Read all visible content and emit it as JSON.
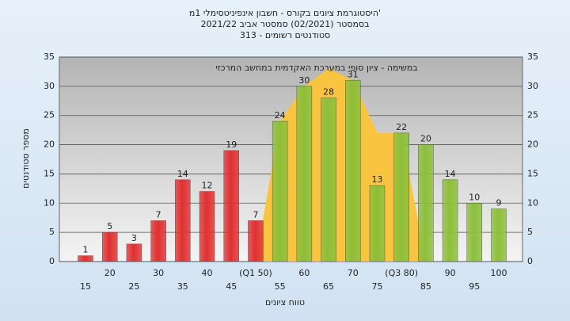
{
  "chart_data": {
    "type": "bar",
    "title": "היסטוגרמת ציונים בקורס - חשבון אינפיניטסימלי 1מ'",
    "subtitle": "בסמסטר (02/2021) סמסטר אביב 2021/22",
    "subtitle2": "סטודנטים רשומים - 313",
    "annotation": "במשימה - ציון סופי במערכת האקדמית במחשב המרכזי",
    "y_label": "מספר סטודנטים",
    "x_label": "טווח ציונים",
    "categories": [
      "15",
      "20",
      "25",
      "30",
      "35",
      "40",
      "45",
      "(Q1 50)",
      "55",
      "60",
      "65",
      "70",
      "75",
      "(Q3 80)",
      "85",
      "90",
      "95",
      "100"
    ],
    "values": [
      1,
      5,
      3,
      7,
      14,
      12,
      19,
      7,
      24,
      30,
      28,
      31,
      13,
      22,
      20,
      14,
      10,
      9
    ],
    "colors": [
      "#e03030",
      "#e03030",
      "#e03030",
      "#e03030",
      "#e03030",
      "#e03030",
      "#e03030",
      "#e03030",
      "#8cbf3a",
      "#8cbf3a",
      "#8cbf3a",
      "#8cbf3a",
      "#8cbf3a",
      "#8cbf3a",
      "#8cbf3a",
      "#8cbf3a",
      "#8cbf3a",
      "#8cbf3a"
    ],
    "band_values": [
      null,
      null,
      null,
      null,
      null,
      null,
      null,
      0,
      24,
      30,
      33,
      31,
      22,
      22,
      0,
      null,
      null,
      null
    ],
    "band_color": "#f9c440",
    "ylim": [
      0,
      35
    ],
    "yticks": [
      0,
      5,
      10,
      15,
      20,
      25,
      30,
      35
    ],
    "grid": true
  }
}
